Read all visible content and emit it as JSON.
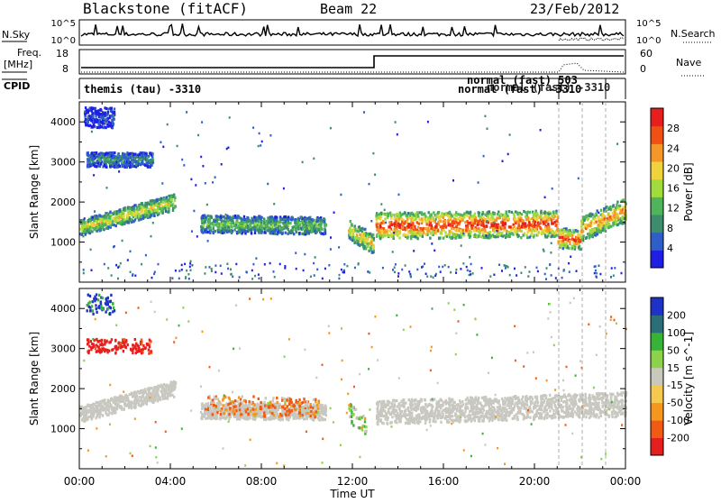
{
  "header": {
    "station": "Blackstone (fitACF)",
    "beam": "Beam 22",
    "date": "23/Feb/2012"
  },
  "top_panels": {
    "nsky_label": "N.Sky",
    "nsky_ticks": [
      "10^5",
      "10^0"
    ],
    "nsearch_label": "N.Search",
    "freq_label": "Freq.",
    "freq_unit": "[MHz]",
    "freq_ticks": [
      "18",
      "8"
    ],
    "nave_label": "Nave",
    "nave_ticks": [
      "60",
      "0"
    ],
    "cpid_label": "CPID",
    "cpid_entries": [
      {
        "text": "themis (tau) -3310"
      },
      {
        "text": "normal (fast) -3310"
      },
      {
        "text": "normal (fast) 503"
      },
      {
        "text": "normal (fast) -3310"
      }
    ]
  },
  "colors": {
    "power": [
      "#1e1ee6",
      "#2e5fc8",
      "#3c8c6e",
      "#4fb45a",
      "#a0dc3c",
      "#f0d23c",
      "#f59628",
      "#f05014",
      "#e61e1e"
    ],
    "velocity": [
      "#e61e1e",
      "#f05a14",
      "#f5961e",
      "#f5c850",
      "#c8c8bc",
      "#8cd24b",
      "#37b437",
      "#2c6e78",
      "#1e32c8"
    ],
    "ground": "#c8c8c0"
  },
  "chart_data": [
    {
      "type": "heatmap",
      "title": "",
      "xlabel": "Time UT",
      "ylabel": "Slant Range [km]",
      "x_ticks": [
        "00:00",
        "04:00",
        "08:00",
        "12:00",
        "16:00",
        "20:00",
        "00:00"
      ],
      "y_ticks": [
        "1000",
        "2000",
        "3000",
        "4000"
      ],
      "ylim": [
        0,
        4500
      ],
      "colorbar": {
        "label": "Power [dB]",
        "ticks": [
          "4",
          "8",
          "12",
          "16",
          "20",
          "24",
          "28"
        ],
        "range": [
          0,
          32
        ]
      },
      "echo_regions": [
        {
          "t0": 0.0,
          "t1": 4.2,
          "r_center_start": 1350,
          "r_center_end": 2000,
          "halfwidth": 200,
          "level": 0.55
        },
        {
          "t0": 0.3,
          "t1": 3.2,
          "r_center_start": 3050,
          "r_center_end": 3050,
          "halfwidth": 180,
          "level": 0.25
        },
        {
          "t0": 0.2,
          "t1": 1.5,
          "r_center_start": 4100,
          "r_center_end": 4100,
          "halfwidth": 250,
          "level": 0.12
        },
        {
          "t0": 5.3,
          "t1": 10.8,
          "r_center_start": 1450,
          "r_center_end": 1400,
          "halfwidth": 220,
          "level": 0.4
        },
        {
          "t0": 11.8,
          "t1": 12.9,
          "r_center_start": 1300,
          "r_center_end": 950,
          "halfwidth": 250,
          "level": 0.6
        },
        {
          "t0": 13.0,
          "t1": 21.0,
          "r_center_start": 1400,
          "r_center_end": 1450,
          "halfwidth": 330,
          "level": 0.85
        },
        {
          "t0": 21.0,
          "t1": 22.0,
          "r_center_start": 1100,
          "r_center_end": 1050,
          "halfwidth": 250,
          "level": 0.8
        },
        {
          "t0": 22.0,
          "t1": 24.0,
          "r_center_start": 1300,
          "r_center_end": 1800,
          "halfwidth": 300,
          "level": 0.7
        }
      ]
    },
    {
      "type": "heatmap",
      "title": "",
      "xlabel": "Time UT",
      "ylabel": "Slant Range [km]",
      "x_ticks": [
        "00:00",
        "04:00",
        "08:00",
        "12:00",
        "16:00",
        "20:00",
        "00:00"
      ],
      "y_ticks": [
        "1000",
        "2000",
        "3000",
        "4000"
      ],
      "ylim": [
        0,
        4500
      ],
      "colorbar": {
        "label": "Velocity [m s^-1]",
        "ticks": [
          "200",
          "100",
          "50",
          "15",
          "-15",
          "-50",
          "-100",
          "-200"
        ]
      },
      "ground_scatter_regions": [
        {
          "t0": 0.0,
          "t1": 4.2,
          "r_center_start": 1350,
          "r_center_end": 2000,
          "halfwidth": 200
        },
        {
          "t0": 5.3,
          "t1": 10.8,
          "r_center_start": 1450,
          "r_center_end": 1400,
          "halfwidth": 200
        },
        {
          "t0": 13.0,
          "t1": 24.0,
          "r_center_start": 1400,
          "r_center_end": 1600,
          "halfwidth": 300
        }
      ],
      "ionospheric_regions": [
        {
          "t0": 0.3,
          "t1": 3.2,
          "r_center_start": 3050,
          "r_center_end": 3050,
          "halfwidth": 180,
          "velocity": -150
        },
        {
          "t0": 0.2,
          "t1": 1.5,
          "r_center_start": 4100,
          "r_center_end": 4100,
          "halfwidth": 250,
          "velocity": 120
        },
        {
          "t0": 5.5,
          "t1": 10.5,
          "r_center_start": 1600,
          "r_center_end": 1500,
          "halfwidth": 250,
          "velocity": -40
        },
        {
          "t0": 11.8,
          "t1": 12.6,
          "r_center_start": 1400,
          "r_center_end": 1000,
          "halfwidth": 250,
          "velocity": 40
        }
      ]
    }
  ]
}
